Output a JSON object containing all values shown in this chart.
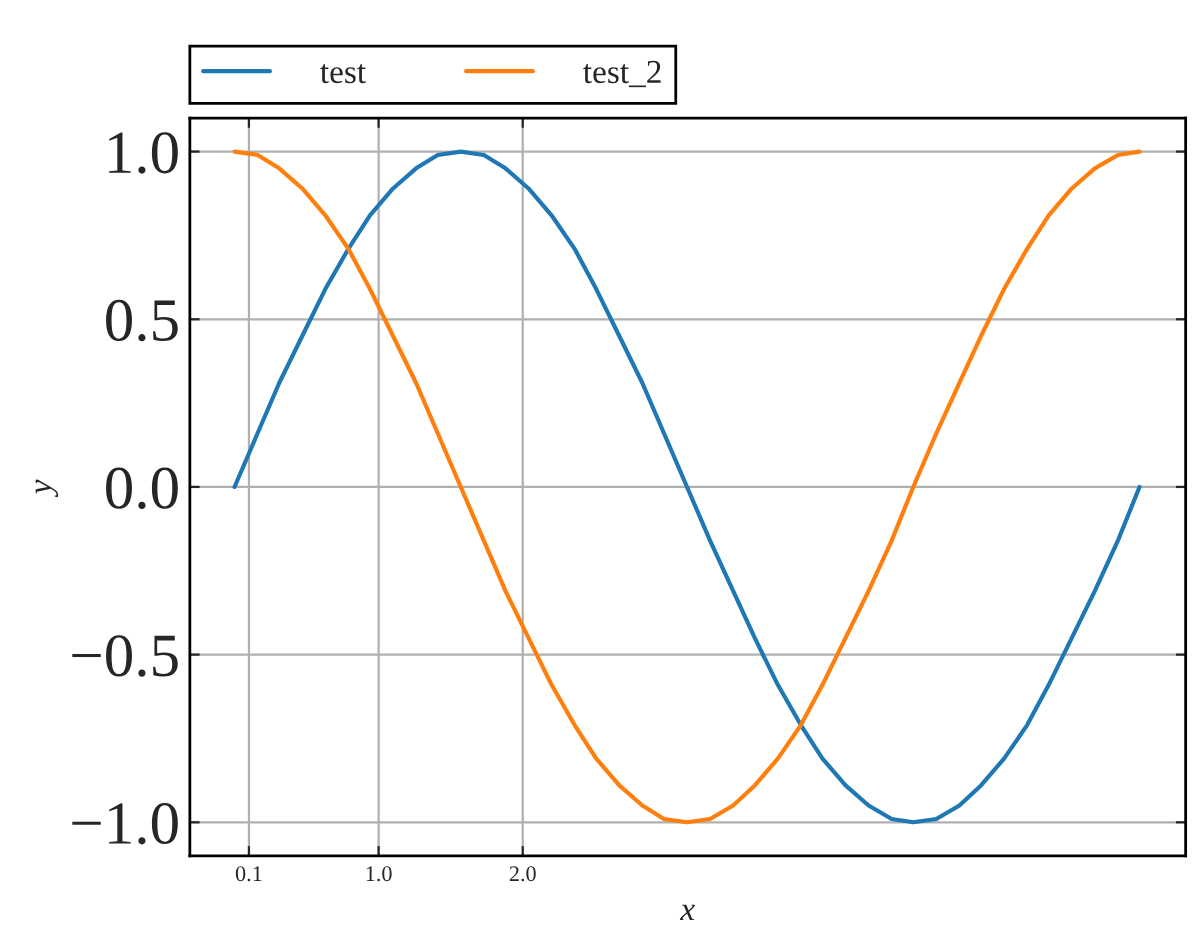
{
  "chart_data": {
    "type": "line",
    "xlabel": "x",
    "ylabel": "y",
    "x": [
      0,
      0.16,
      0.31,
      0.47,
      0.63,
      0.79,
      0.94,
      1.1,
      1.26,
      1.41,
      1.57,
      1.73,
      1.88,
      2.04,
      2.2,
      2.36,
      2.51,
      2.67,
      2.83,
      2.98,
      3.14,
      3.3,
      3.46,
      3.61,
      3.77,
      3.93,
      4.08,
      4.24,
      4.4,
      4.56,
      4.71,
      4.87,
      5.03,
      5.18,
      5.34,
      5.5,
      5.65,
      5.81,
      5.97,
      6.13,
      6.28
    ],
    "series": [
      {
        "name": "test",
        "color": "#1f77b4",
        "values": [
          0,
          0.16,
          0.31,
          0.45,
          0.59,
          0.71,
          0.81,
          0.89,
          0.95,
          0.99,
          1,
          0.99,
          0.95,
          0.89,
          0.81,
          0.71,
          0.59,
          0.45,
          0.31,
          0.16,
          0,
          -0.16,
          -0.31,
          -0.45,
          -0.59,
          -0.71,
          -0.81,
          -0.89,
          -0.95,
          -0.99,
          -1,
          -0.99,
          -0.95,
          -0.89,
          -0.81,
          -0.71,
          -0.59,
          -0.45,
          -0.31,
          -0.16,
          0
        ]
      },
      {
        "name": "test_2",
        "color": "#ff7f0e",
        "values": [
          1,
          0.99,
          0.95,
          0.89,
          0.81,
          0.71,
          0.59,
          0.45,
          0.31,
          0.16,
          0,
          -0.16,
          -0.31,
          -0.45,
          -0.59,
          -0.71,
          -0.81,
          -0.89,
          -0.95,
          -0.99,
          -1,
          -0.99,
          -0.95,
          -0.89,
          -0.81,
          -0.71,
          -0.59,
          -0.45,
          -0.31,
          -0.16,
          0,
          0.16,
          0.31,
          0.45,
          0.59,
          0.71,
          0.81,
          0.89,
          0.95,
          0.99,
          1
        ]
      }
    ],
    "xlim": [
      -0.31,
      6.6
    ],
    "xticks": [
      {
        "value": 0.1,
        "label": "0.1"
      },
      {
        "value": 1,
        "label": "1.0"
      },
      {
        "value": 2,
        "label": "2.0"
      }
    ],
    "ylim": [
      -1.1,
      1.1
    ],
    "yticks": [
      {
        "value": -1,
        "label": "−1.0"
      },
      {
        "value": -0.5,
        "label": "−0.5"
      },
      {
        "value": 0,
        "label": "0.0"
      },
      {
        "value": 0.5,
        "label": "0.5"
      },
      {
        "value": 1,
        "label": "1.0"
      }
    ],
    "grid": true,
    "legend": "top left",
    "marker": "none",
    "line_style": "solid"
  }
}
